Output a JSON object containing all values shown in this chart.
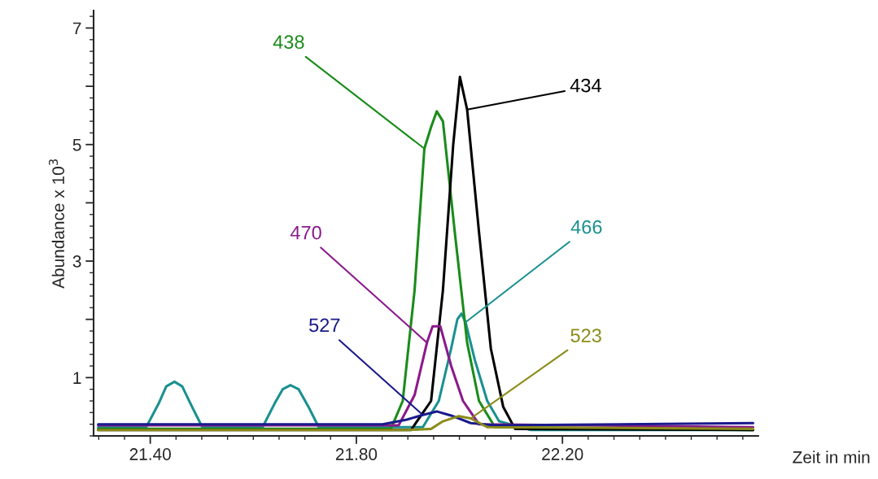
{
  "chart_data": {
    "type": "line",
    "xlabel": "Zeit in min",
    "ylabel": "Abundance x 10$^{3}$",
    "xlim": [
      21.29,
      22.58
    ],
    "ylim": [
      0,
      7.3
    ],
    "xticks": [
      {
        "value": 21.4,
        "label": "21.40"
      },
      {
        "value": 21.8,
        "label": "21.80"
      },
      {
        "value": 22.2,
        "label": "22.20"
      }
    ],
    "yticks": [
      1,
      {
        "value": 2,
        "label": null
      },
      3,
      {
        "value": 4,
        "label": null
      },
      5,
      {
        "value": 6,
        "label": null
      },
      7
    ],
    "grid": false,
    "legend": false,
    "marker": "none",
    "line_style": "solid",
    "series": [
      {
        "name": "466",
        "color": "#1a9090",
        "x": [
          21.299,
          21.392,
          21.416,
          21.431,
          21.447,
          21.462,
          21.481,
          21.501,
          21.618,
          21.641,
          21.657,
          21.672,
          21.688,
          21.707,
          21.727,
          21.929,
          21.96,
          21.984,
          21.996,
          22.004,
          22.012,
          22.03,
          22.054,
          22.077,
          22.139,
          22.57
        ],
        "values": [
          0.15,
          0.15,
          0.55,
          0.85,
          0.93,
          0.85,
          0.5,
          0.15,
          0.15,
          0.55,
          0.8,
          0.87,
          0.8,
          0.5,
          0.15,
          0.15,
          0.6,
          1.5,
          2.0,
          2.1,
          1.95,
          1.3,
          0.6,
          0.25,
          0.1,
          0.1
        ]
      },
      {
        "name": "438",
        "color": "#1a8c1a",
        "x": [
          21.299,
          21.867,
          21.89,
          21.913,
          21.932,
          21.945,
          21.956,
          21.968,
          21.991,
          22.015,
          22.038,
          22.069,
          22.57
        ],
        "values": [
          0.12,
          0.12,
          0.6,
          2.5,
          4.93,
          5.3,
          5.57,
          5.4,
          3.5,
          1.6,
          0.6,
          0.15,
          0.1
        ]
      },
      {
        "name": "434",
        "color": "#000000",
        "x": [
          21.299,
          21.906,
          21.945,
          21.968,
          21.988,
          22.001,
          22.015,
          22.038,
          22.061,
          22.085,
          22.108,
          22.57
        ],
        "values": [
          0.1,
          0.1,
          0.6,
          2.5,
          5.0,
          6.16,
          5.6,
          3.5,
          1.5,
          0.5,
          0.12,
          0.1
        ]
      },
      {
        "name": "470",
        "color": "#8b1a8b",
        "x": [
          21.299,
          21.882,
          21.913,
          21.937,
          21.948,
          21.963,
          21.984,
          22.007,
          22.038,
          22.57
        ],
        "values": [
          0.18,
          0.18,
          0.7,
          1.6,
          1.88,
          1.88,
          1.2,
          0.6,
          0.2,
          0.15
        ]
      },
      {
        "name": "527",
        "color": "#1a1a8c",
        "x": [
          21.299,
          21.851,
          21.898,
          21.929,
          21.956,
          21.984,
          22.022,
          22.069,
          22.57
        ],
        "values": [
          0.2,
          0.2,
          0.28,
          0.36,
          0.42,
          0.35,
          0.22,
          0.18,
          0.22
        ]
      },
      {
        "name": "523",
        "color": "#8c8c1a",
        "x": [
          21.299,
          21.898,
          21.945,
          21.968,
          21.999,
          22.022,
          22.054,
          22.57
        ],
        "values": [
          0.1,
          0.1,
          0.12,
          0.25,
          0.34,
          0.3,
          0.15,
          0.12
        ]
      }
    ]
  }
}
